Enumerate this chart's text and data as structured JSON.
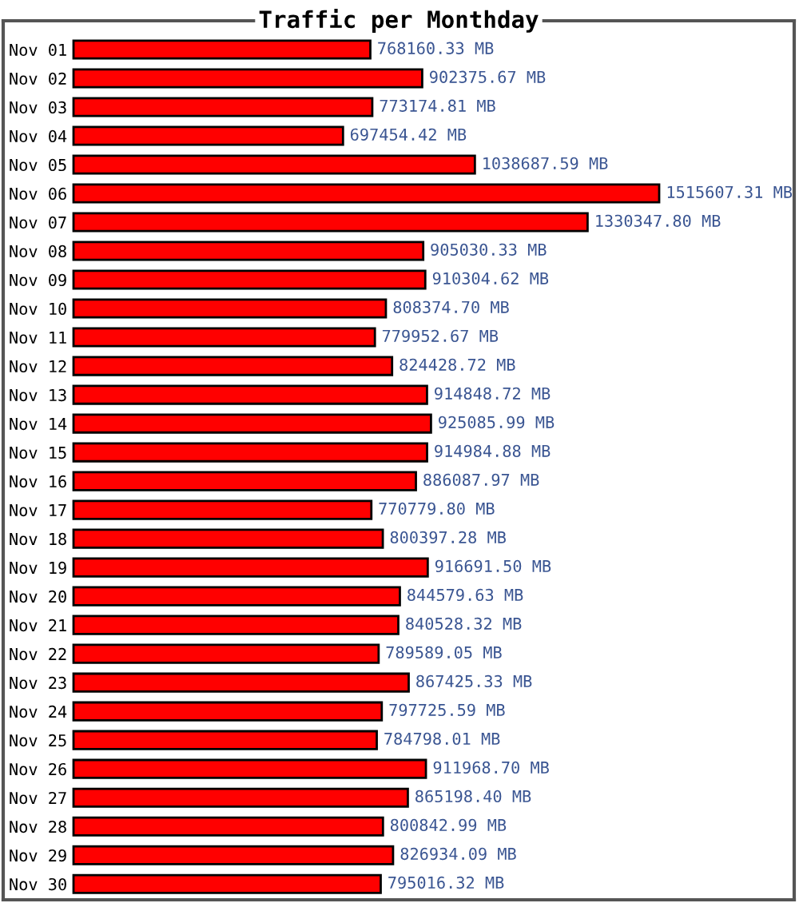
{
  "chart_data": {
    "type": "bar",
    "orientation": "horizontal",
    "title": "Traffic per Monthday",
    "categories": [
      "Nov 01",
      "Nov 02",
      "Nov 03",
      "Nov 04",
      "Nov 05",
      "Nov 06",
      "Nov 07",
      "Nov 08",
      "Nov 09",
      "Nov 10",
      "Nov 11",
      "Nov 12",
      "Nov 13",
      "Nov 14",
      "Nov 15",
      "Nov 16",
      "Nov 17",
      "Nov 18",
      "Nov 19",
      "Nov 20",
      "Nov 21",
      "Nov 22",
      "Nov 23",
      "Nov 24",
      "Nov 25",
      "Nov 26",
      "Nov 27",
      "Nov 28",
      "Nov 29",
      "Nov 30"
    ],
    "values": [
      768160.33,
      902375.67,
      773174.81,
      697454.42,
      1038687.59,
      1515607.31,
      1330347.8,
      905030.33,
      910304.62,
      808374.7,
      779952.67,
      824428.72,
      914848.72,
      925085.99,
      914984.88,
      886087.97,
      770779.8,
      800397.28,
      916691.5,
      844579.63,
      840528.32,
      789589.05,
      867425.33,
      797725.59,
      784798.01,
      911968.7,
      865198.4,
      800842.99,
      826934.09,
      795016.32
    ],
    "value_labels": [
      "768160.33 MB",
      "902375.67 MB",
      "773174.81 MB",
      "697454.42 MB",
      "1038687.59 MB",
      "1515607.31 MB",
      "1330347.80 MB",
      "905030.33 MB",
      "910304.62 MB",
      "808374.70 MB",
      "779952.67 MB",
      "824428.72 MB",
      "914848.72 MB",
      "925085.99 MB",
      "914984.88 MB",
      "886087.97 MB",
      "770779.80 MB",
      "800397.28 MB",
      "916691.50 MB",
      "844579.63 MB",
      "840528.32 MB",
      "789589.05 MB",
      "867425.33 MB",
      "797725.59 MB",
      "784798.01 MB",
      "911968.70 MB",
      "865198.40 MB",
      "800842.99 MB",
      "826934.09 MB",
      "795016.32 MB"
    ],
    "color": "#ff0000",
    "tick_labels": "y"
  }
}
